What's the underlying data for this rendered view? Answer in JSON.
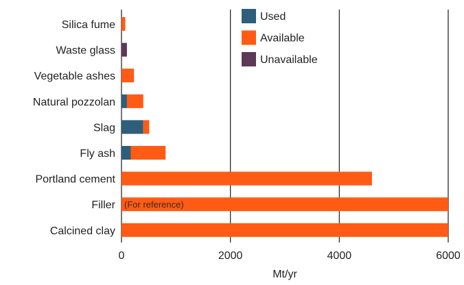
{
  "chart_data": {
    "type": "bar",
    "orientation": "horizontal",
    "stacked": true,
    "categories": [
      "Silica fume",
      "Waste glass",
      "Vegetable ashes",
      "Natural pozzolan",
      "Slag",
      "Fly ash",
      "Portland cement",
      "Filler",
      "Calcined clay"
    ],
    "series": [
      {
        "name": "Used",
        "color": "#2e5e7a",
        "values": [
          0,
          0,
          0,
          100,
          400,
          170,
          0,
          0,
          0
        ]
      },
      {
        "name": "Available",
        "color": "#ff5b14",
        "values": [
          70,
          0,
          230,
          300,
          110,
          640,
          4600,
          6000,
          6000
        ]
      },
      {
        "name": "Unavailable",
        "color": "#5e3857",
        "values": [
          0,
          100,
          0,
          0,
          0,
          0,
          0,
          0,
          0
        ]
      }
    ],
    "xlabel": "Mt/yr",
    "xlim": [
      0,
      6000
    ],
    "xticks": [
      0,
      2000,
      4000,
      6000
    ],
    "xtick_labels": [
      "0",
      "2000",
      "4000",
      "6000"
    ],
    "grid": "vertical",
    "legend_position": "top-center",
    "annotations": [
      {
        "category": "Filler",
        "text": "(For reference)"
      }
    ]
  }
}
